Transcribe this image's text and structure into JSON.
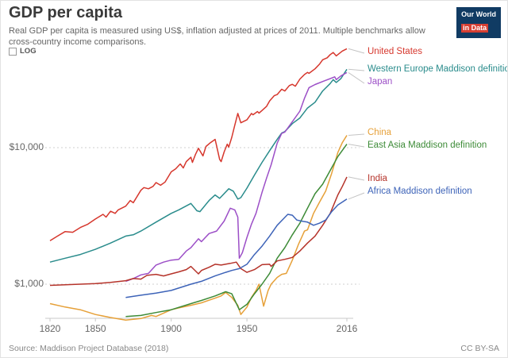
{
  "logo": {
    "line1": "Our World",
    "line2": "in Data"
  },
  "controls": {
    "log_label": "LOG"
  },
  "footer": {
    "source": "Source: Maddison Project Database (2018)",
    "license": "CC BY-SA"
  },
  "chart_data": {
    "type": "line",
    "title": "GDP per capita",
    "subtitle": "Real GDP per capita is measured using US$, inflation adjusted at prices of 2011. Multiple benchmarks allow cross-country income comparisons.",
    "y_scale": "log",
    "grid": "dotted-horizontal",
    "legend_position": "right",
    "x_range": [
      1820,
      2016
    ],
    "x_ticks": [
      1820,
      1850,
      1900,
      1950,
      2016
    ],
    "y_ticks": [
      {
        "value": 10000,
        "label": "$10,000"
      },
      {
        "value": 1000,
        "label": "$1,000"
      }
    ],
    "series": [
      {
        "name": "United States",
        "color": "#d6372d",
        "points": [
          [
            1820,
            2080
          ],
          [
            1825,
            2250
          ],
          [
            1830,
            2430
          ],
          [
            1835,
            2400
          ],
          [
            1840,
            2600
          ],
          [
            1845,
            2750
          ],
          [
            1850,
            3000
          ],
          [
            1855,
            3250
          ],
          [
            1857,
            3100
          ],
          [
            1860,
            3420
          ],
          [
            1863,
            3300
          ],
          [
            1865,
            3500
          ],
          [
            1870,
            3730
          ],
          [
            1873,
            4100
          ],
          [
            1875,
            3950
          ],
          [
            1880,
            4870
          ],
          [
            1882,
            5100
          ],
          [
            1885,
            5000
          ],
          [
            1888,
            5200
          ],
          [
            1890,
            5550
          ],
          [
            1893,
            5300
          ],
          [
            1896,
            5600
          ],
          [
            1900,
            6650
          ],
          [
            1903,
            7000
          ],
          [
            1906,
            7600
          ],
          [
            1908,
            7100
          ],
          [
            1910,
            7900
          ],
          [
            1913,
            8500
          ],
          [
            1914,
            7800
          ],
          [
            1916,
            8900
          ],
          [
            1918,
            9900
          ],
          [
            1921,
            8700
          ],
          [
            1923,
            10200
          ],
          [
            1926,
            10900
          ],
          [
            1929,
            11500
          ],
          [
            1930,
            10300
          ],
          [
            1932,
            8200
          ],
          [
            1933,
            7900
          ],
          [
            1935,
            9300
          ],
          [
            1937,
            10600
          ],
          [
            1938,
            10100
          ],
          [
            1940,
            11900
          ],
          [
            1942,
            14600
          ],
          [
            1944,
            17800
          ],
          [
            1946,
            15200
          ],
          [
            1948,
            15600
          ],
          [
            1950,
            16000
          ],
          [
            1953,
            17800
          ],
          [
            1954,
            17400
          ],
          [
            1957,
            18400
          ],
          [
            1958,
            17900
          ],
          [
            1960,
            18700
          ],
          [
            1963,
            20100
          ],
          [
            1965,
            22000
          ],
          [
            1968,
            24000
          ],
          [
            1970,
            24500
          ],
          [
            1973,
            26800
          ],
          [
            1975,
            26000
          ],
          [
            1978,
            28500
          ],
          [
            1980,
            29100
          ],
          [
            1982,
            28200
          ],
          [
            1985,
            31800
          ],
          [
            1988,
            34300
          ],
          [
            1990,
            35600
          ],
          [
            1991,
            35000
          ],
          [
            1995,
            37800
          ],
          [
            1998,
            41000
          ],
          [
            2000,
            44000
          ],
          [
            2003,
            45500
          ],
          [
            2005,
            48000
          ],
          [
            2007,
            49800
          ],
          [
            2009,
            47000
          ],
          [
            2011,
            49000
          ],
          [
            2013,
            51000
          ],
          [
            2016,
            53000
          ]
        ]
      },
      {
        "name": "Western Europe Maddison definition",
        "color": "#2a8c8c",
        "points": [
          [
            1820,
            1450
          ],
          [
            1830,
            1550
          ],
          [
            1840,
            1650
          ],
          [
            1850,
            1800
          ],
          [
            1860,
            2000
          ],
          [
            1870,
            2250
          ],
          [
            1875,
            2300
          ],
          [
            1880,
            2450
          ],
          [
            1890,
            2850
          ],
          [
            1900,
            3300
          ],
          [
            1905,
            3500
          ],
          [
            1913,
            3900
          ],
          [
            1917,
            3450
          ],
          [
            1919,
            3400
          ],
          [
            1925,
            4100
          ],
          [
            1929,
            4500
          ],
          [
            1932,
            4250
          ],
          [
            1938,
            5000
          ],
          [
            1941,
            4800
          ],
          [
            1944,
            4200
          ],
          [
            1946,
            4300
          ],
          [
            1950,
            5050
          ],
          [
            1955,
            6300
          ],
          [
            1960,
            7800
          ],
          [
            1965,
            9500
          ],
          [
            1970,
            11500
          ],
          [
            1973,
            12800
          ],
          [
            1975,
            13100
          ],
          [
            1980,
            15000
          ],
          [
            1985,
            16500
          ],
          [
            1990,
            19500
          ],
          [
            1995,
            21500
          ],
          [
            2000,
            26000
          ],
          [
            2005,
            29500
          ],
          [
            2007,
            31500
          ],
          [
            2009,
            30000
          ],
          [
            2012,
            32000
          ],
          [
            2016,
            37500
          ]
        ]
      },
      {
        "name": "Japan",
        "color": "#9c4fc7",
        "points": [
          [
            1870,
            1050
          ],
          [
            1875,
            1100
          ],
          [
            1880,
            1170
          ],
          [
            1885,
            1200
          ],
          [
            1890,
            1380
          ],
          [
            1895,
            1450
          ],
          [
            1900,
            1500
          ],
          [
            1905,
            1520
          ],
          [
            1910,
            1750
          ],
          [
            1913,
            1850
          ],
          [
            1918,
            2150
          ],
          [
            1920,
            2050
          ],
          [
            1925,
            2350
          ],
          [
            1930,
            2450
          ],
          [
            1935,
            2900
          ],
          [
            1939,
            3600
          ],
          [
            1942,
            3500
          ],
          [
            1944,
            3100
          ],
          [
            1945,
            1550
          ],
          [
            1947,
            1700
          ],
          [
            1950,
            2200
          ],
          [
            1953,
            2750
          ],
          [
            1956,
            3300
          ],
          [
            1960,
            4700
          ],
          [
            1963,
            6000
          ],
          [
            1966,
            7500
          ],
          [
            1970,
            10800
          ],
          [
            1973,
            12700
          ],
          [
            1975,
            13000
          ],
          [
            1980,
            15500
          ],
          [
            1985,
            18500
          ],
          [
            1988,
            23000
          ],
          [
            1991,
            27500
          ],
          [
            1995,
            29000
          ],
          [
            2000,
            30500
          ],
          [
            2005,
            32000
          ],
          [
            2008,
            33000
          ],
          [
            2009,
            31500
          ],
          [
            2012,
            33500
          ],
          [
            2016,
            35500
          ]
        ]
      },
      {
        "name": "China",
        "color": "#e6a038",
        "points": [
          [
            1820,
            720
          ],
          [
            1830,
            680
          ],
          [
            1840,
            650
          ],
          [
            1850,
            600
          ],
          [
            1860,
            570
          ],
          [
            1870,
            545
          ],
          [
            1880,
            560
          ],
          [
            1887,
            590
          ],
          [
            1890,
            580
          ],
          [
            1900,
            650
          ],
          [
            1905,
            670
          ],
          [
            1913,
            700
          ],
          [
            1920,
            730
          ],
          [
            1929,
            790
          ],
          [
            1933,
            820
          ],
          [
            1936,
            870
          ],
          [
            1940,
            800
          ],
          [
            1944,
            700
          ],
          [
            1946,
            600
          ],
          [
            1950,
            680
          ],
          [
            1953,
            800
          ],
          [
            1956,
            900
          ],
          [
            1958,
            1000
          ],
          [
            1961,
            690
          ],
          [
            1964,
            900
          ],
          [
            1966,
            1000
          ],
          [
            1970,
            1120
          ],
          [
            1973,
            1180
          ],
          [
            1976,
            1200
          ],
          [
            1980,
            1500
          ],
          [
            1984,
            1950
          ],
          [
            1988,
            2450
          ],
          [
            1990,
            2500
          ],
          [
            1994,
            3300
          ],
          [
            1998,
            4000
          ],
          [
            2002,
            4800
          ],
          [
            2006,
            6500
          ],
          [
            2010,
            9200
          ],
          [
            2013,
            10900
          ],
          [
            2016,
            12300
          ]
        ]
      },
      {
        "name": "East Asia Maddison definition",
        "color": "#3d8b37",
        "points": [
          [
            1870,
            580
          ],
          [
            1880,
            590
          ],
          [
            1890,
            620
          ],
          [
            1900,
            650
          ],
          [
            1913,
            720
          ],
          [
            1920,
            760
          ],
          [
            1929,
            820
          ],
          [
            1936,
            880
          ],
          [
            1940,
            850
          ],
          [
            1945,
            650
          ],
          [
            1950,
            712
          ],
          [
            1955,
            850
          ],
          [
            1960,
            1000
          ],
          [
            1965,
            1200
          ],
          [
            1970,
            1550
          ],
          [
            1975,
            1850
          ],
          [
            1980,
            2300
          ],
          [
            1985,
            2800
          ],
          [
            1990,
            3600
          ],
          [
            1995,
            4600
          ],
          [
            2000,
            5400
          ],
          [
            2005,
            6800
          ],
          [
            2010,
            8600
          ],
          [
            2016,
            10600
          ]
        ]
      },
      {
        "name": "India",
        "color": "#b5332a",
        "points": [
          [
            1820,
            980
          ],
          [
            1830,
            990
          ],
          [
            1840,
            1000
          ],
          [
            1850,
            1010
          ],
          [
            1860,
            1030
          ],
          [
            1870,
            1060
          ],
          [
            1875,
            1100
          ],
          [
            1880,
            1090
          ],
          [
            1884,
            1160
          ],
          [
            1890,
            1180
          ],
          [
            1895,
            1150
          ],
          [
            1900,
            1190
          ],
          [
            1905,
            1230
          ],
          [
            1910,
            1280
          ],
          [
            1913,
            1350
          ],
          [
            1918,
            1190
          ],
          [
            1920,
            1260
          ],
          [
            1925,
            1330
          ],
          [
            1929,
            1400
          ],
          [
            1933,
            1380
          ],
          [
            1939,
            1420
          ],
          [
            1943,
            1450
          ],
          [
            1946,
            1300
          ],
          [
            1950,
            1220
          ],
          [
            1955,
            1280
          ],
          [
            1960,
            1390
          ],
          [
            1965,
            1400
          ],
          [
            1966,
            1350
          ],
          [
            1970,
            1480
          ],
          [
            1975,
            1520
          ],
          [
            1980,
            1570
          ],
          [
            1985,
            1750
          ],
          [
            1990,
            2000
          ],
          [
            1995,
            2250
          ],
          [
            2000,
            2700
          ],
          [
            2005,
            3300
          ],
          [
            2010,
            4500
          ],
          [
            2013,
            5200
          ],
          [
            2016,
            6100
          ]
        ]
      },
      {
        "name": "Africa Maddison definition",
        "color": "#3d63b8",
        "points": [
          [
            1870,
            800
          ],
          [
            1880,
            830
          ],
          [
            1890,
            860
          ],
          [
            1900,
            900
          ],
          [
            1913,
            1000
          ],
          [
            1920,
            1050
          ],
          [
            1929,
            1150
          ],
          [
            1936,
            1220
          ],
          [
            1940,
            1260
          ],
          [
            1945,
            1300
          ],
          [
            1950,
            1400
          ],
          [
            1955,
            1650
          ],
          [
            1960,
            1900
          ],
          [
            1965,
            2250
          ],
          [
            1970,
            2700
          ],
          [
            1974,
            3000
          ],
          [
            1977,
            3250
          ],
          [
            1980,
            3200
          ],
          [
            1983,
            2950
          ],
          [
            1986,
            2900
          ],
          [
            1990,
            2850
          ],
          [
            1994,
            2700
          ],
          [
            1998,
            2800
          ],
          [
            2002,
            2950
          ],
          [
            2006,
            3400
          ],
          [
            2010,
            3800
          ],
          [
            2016,
            4200
          ]
        ]
      }
    ]
  }
}
